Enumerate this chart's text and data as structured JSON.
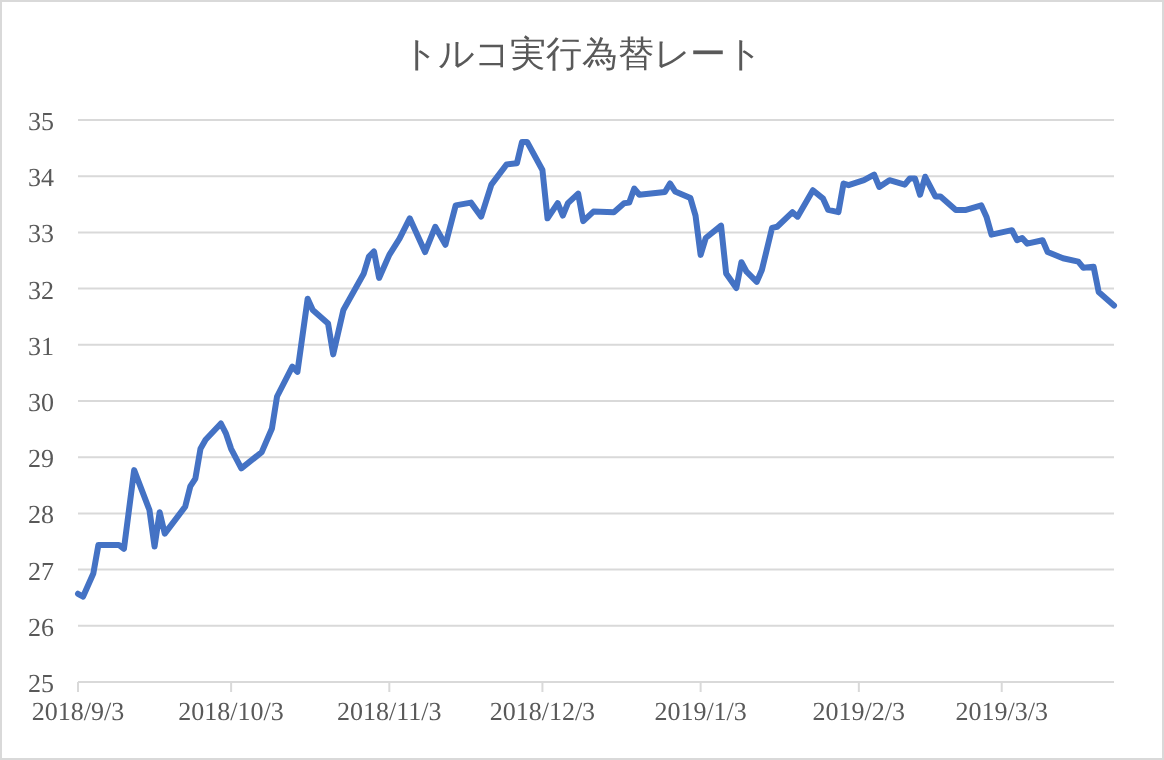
{
  "chart_data": {
    "type": "line",
    "title": "トルコ実行為替レート",
    "x": [
      "2018-09-03",
      "2018-09-04",
      "2018-09-06",
      "2018-09-07",
      "2018-09-11",
      "2018-09-12",
      "2018-09-14",
      "2018-09-17",
      "2018-09-18",
      "2018-09-19",
      "2018-09-20",
      "2018-09-24",
      "2018-09-25",
      "2018-09-26",
      "2018-09-27",
      "2018-09-28",
      "2018-10-01",
      "2018-10-02",
      "2018-10-03",
      "2018-10-05",
      "2018-10-09",
      "2018-10-11",
      "2018-10-12",
      "2018-10-15",
      "2018-10-16",
      "2018-10-18",
      "2018-10-19",
      "2018-10-22",
      "2018-10-23",
      "2018-10-25",
      "2018-10-29",
      "2018-10-30",
      "2018-10-31",
      "2018-11-01",
      "2018-11-03",
      "2018-11-05",
      "2018-11-07",
      "2018-11-10",
      "2018-11-12",
      "2018-11-14",
      "2018-11-16",
      "2018-11-19",
      "2018-11-21",
      "2018-11-23",
      "2018-11-26",
      "2018-11-28",
      "2018-11-29",
      "2018-11-30",
      "2018-12-03",
      "2018-12-04",
      "2018-12-06",
      "2018-12-07",
      "2018-12-08",
      "2018-12-10",
      "2018-12-11",
      "2018-12-13",
      "2018-12-17",
      "2018-12-19",
      "2018-12-20",
      "2018-12-21",
      "2018-12-22",
      "2018-12-27",
      "2018-12-28",
      "2018-12-29",
      "2019-01-01",
      "2019-01-02",
      "2019-01-03",
      "2019-01-04",
      "2019-01-07",
      "2019-01-08",
      "2019-01-10",
      "2019-01-11",
      "2019-01-12",
      "2019-01-14",
      "2019-01-15",
      "2019-01-17",
      "2019-01-18",
      "2019-01-21",
      "2019-01-22",
      "2019-01-25",
      "2019-01-27",
      "2019-01-28",
      "2019-01-30",
      "2019-01-31",
      "2019-02-01",
      "2019-02-04",
      "2019-02-06",
      "2019-02-07",
      "2019-02-09",
      "2019-02-12",
      "2019-02-13",
      "2019-02-14",
      "2019-02-15",
      "2019-02-16",
      "2019-02-18",
      "2019-02-19",
      "2019-02-22",
      "2019-02-24",
      "2019-02-27",
      "2019-02-28",
      "2019-03-01",
      "2019-03-05",
      "2019-03-06",
      "2019-03-07",
      "2019-03-08",
      "2019-03-11",
      "2019-03-12",
      "2019-03-15",
      "2019-03-18",
      "2019-03-19",
      "2019-03-21",
      "2019-03-22",
      "2019-03-25"
    ],
    "series": [
      {
        "color": "#4472c4",
        "values": [
          26.57,
          26.52,
          26.93,
          27.44,
          27.44,
          27.37,
          28.77,
          28.06,
          27.41,
          28.02,
          27.64,
          28.12,
          28.48,
          28.62,
          29.15,
          29.31,
          29.6,
          29.42,
          29.15,
          28.8,
          29.09,
          29.51,
          30.08,
          30.61,
          30.52,
          31.82,
          31.62,
          31.38,
          30.83,
          31.62,
          32.27,
          32.57,
          32.66,
          32.19,
          32.6,
          32.89,
          33.25,
          32.65,
          33.1,
          32.78,
          33.48,
          33.53,
          33.28,
          33.85,
          34.21,
          34.23,
          34.61,
          34.61,
          34.11,
          33.25,
          33.52,
          33.3,
          33.52,
          33.69,
          33.2,
          33.37,
          33.36,
          33.52,
          33.53,
          33.78,
          33.67,
          33.72,
          33.87,
          33.73,
          33.61,
          33.3,
          32.6,
          32.9,
          33.12,
          32.27,
          32.01,
          32.47,
          32.3,
          32.12,
          32.33,
          33.08,
          33.1,
          33.36,
          33.28,
          33.75,
          33.6,
          33.4,
          33.36,
          33.87,
          33.84,
          33.93,
          34.03,
          33.81,
          33.93,
          33.85,
          33.96,
          33.96,
          33.67,
          33.99,
          33.64,
          33.64,
          33.4,
          33.4,
          33.48,
          33.28,
          32.96,
          33.04,
          32.86,
          32.9,
          32.8,
          32.86,
          32.65,
          32.54,
          32.48,
          32.37,
          32.39,
          31.94,
          31.7
        ]
      }
    ],
    "xlim": [
      "2018-09-03",
      "2019-03-25"
    ],
    "xticks": [
      {
        "value": "2018-09-03",
        "label": "2018/9/3"
      },
      {
        "value": "2018-10-03",
        "label": "2018/10/3"
      },
      {
        "value": "2018-11-03",
        "label": "2018/11/3"
      },
      {
        "value": "2018-12-03",
        "label": "2018/12/3"
      },
      {
        "value": "2019-01-03",
        "label": "2019/1/3"
      },
      {
        "value": "2019-02-03",
        "label": "2019/2/3"
      },
      {
        "value": "2019-03-03",
        "label": "2019/3/3"
      }
    ],
    "ylim": [
      25,
      35
    ],
    "yticks": [
      25,
      26,
      27,
      28,
      29,
      30,
      31,
      32,
      33,
      34,
      35
    ],
    "grid": "y",
    "marker": "none",
    "line_style": "solid"
  }
}
